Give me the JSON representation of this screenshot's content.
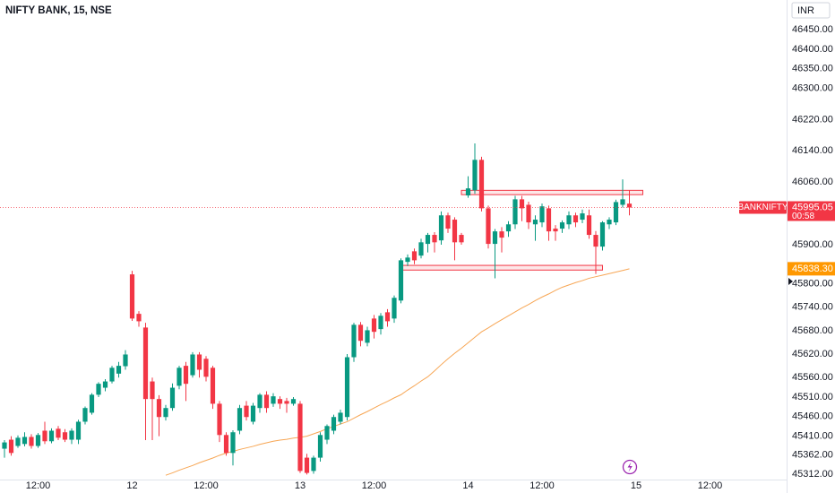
{
  "chart_data": {
    "type": "candlestick",
    "title": "NIFTY BANK, 15, NSE",
    "currency": "INR",
    "symbol": "BANKNIFTY",
    "countdown": "00:58",
    "up_color": "#089981",
    "down_color": "#f23645",
    "grid": false,
    "last_price_line": true,
    "ylim": [
      45299,
      46526
    ],
    "yticks": [
      {
        "value": 46450,
        "label": "46450.00"
      },
      {
        "value": 46400,
        "label": "46400.00"
      },
      {
        "value": 46350,
        "label": "46350.00"
      },
      {
        "value": 46300,
        "label": "46300.00"
      },
      {
        "value": 46220,
        "label": "46220.00"
      },
      {
        "value": 46140,
        "label": "46140.00"
      },
      {
        "value": 46060,
        "label": "46060.00"
      },
      {
        "value": 45900,
        "label": "45900.00"
      },
      {
        "value": 45800,
        "label": "45800.00"
      },
      {
        "value": 45740,
        "label": "45740.00"
      },
      {
        "value": 45680,
        "label": "45680.00"
      },
      {
        "value": 45620,
        "label": "45620.00"
      },
      {
        "value": 45560,
        "label": "45560.00"
      },
      {
        "value": 45510,
        "label": "45510.00"
      },
      {
        "value": 45460,
        "label": "45460.00"
      },
      {
        "value": 45410,
        "label": "45410.00"
      },
      {
        "value": 45362,
        "label": "45362.00"
      },
      {
        "value": 45312,
        "label": "45312.00"
      }
    ],
    "categories": [
      null,
      null,
      null,
      null,
      null,
      "12:00",
      null,
      null,
      null,
      null,
      null,
      null,
      null,
      null,
      null,
      null,
      null,
      null,
      null,
      "12",
      null,
      null,
      null,
      null,
      null,
      null,
      null,
      null,
      null,
      null,
      "12:00",
      null,
      null,
      null,
      null,
      null,
      null,
      null,
      null,
      null,
      null,
      null,
      null,
      null,
      "13",
      null,
      null,
      null,
      null,
      null,
      null,
      null,
      null,
      null,
      null,
      "12:00",
      null,
      null,
      null,
      null,
      null,
      null,
      null,
      null,
      null,
      null,
      null,
      null,
      null,
      "14",
      null,
      null,
      null,
      null,
      null,
      null,
      null,
      null,
      null,
      null,
      "12:00",
      null,
      null,
      null,
      null,
      null,
      null,
      null,
      null,
      null,
      null,
      null,
      null,
      null,
      "15",
      null,
      null,
      null,
      null,
      null,
      null,
      null,
      null,
      null,
      null,
      "12:00",
      null,
      null,
      null,
      null,
      null,
      null,
      null,
      null,
      null,
      null,
      null
    ],
    "open": [
      45378,
      45401,
      45385,
      45390,
      45408,
      45385,
      45424,
      45397,
      45429,
      45420,
      45401,
      45401,
      45447,
      45470,
      45516,
      45534,
      45550,
      45570,
      45589,
      45824,
      45723,
      45688,
      45550,
      45505,
      45459,
      45482,
      45539,
      45590,
      45566,
      45619,
      45608,
      45585,
      45493,
      45413,
      45367,
      45424,
      45488,
      45447,
      45482,
      45516,
      45493,
      45505,
      45500,
      45493,
      45493,
      45355,
      45321,
      45355,
      45401,
      45424,
      45447,
      45459,
      45612,
      45695,
      45649,
      45711,
      45684,
      45727,
      45711,
      45757,
      45856,
      45883,
      45872,
      45902,
      45925,
      45911,
      45975,
      45964,
      45925,
      46026,
      46039,
      46117,
      45993,
      45902,
      45934,
      45934,
      45952,
      46016,
      46002,
      45952,
      45957,
      45993,
      45941,
      45941,
      45952,
      45975,
      45964,
      45975,
      45925,
      45895,
      45952,
      45957,
      46002,
      46005,
      null,
      null,
      null,
      null,
      null,
      null,
      null,
      null,
      null,
      null,
      null,
      null,
      null,
      null,
      null,
      null,
      null,
      null,
      null,
      null,
      null,
      null,
      null
    ],
    "high": [
      45400,
      45410,
      45412,
      45420,
      45415,
      45418,
      45447,
      45430,
      45436,
      45428,
      45430,
      45452,
      45486,
      45520,
      45548,
      45556,
      45590,
      45600,
      45630,
      45833,
      45730,
      45700,
      45560,
      45515,
      45490,
      45545,
      45590,
      45600,
      45625,
      45625,
      45615,
      45590,
      45500,
      45420,
      45425,
      45490,
      45500,
      45495,
      45520,
      45525,
      45520,
      45512,
      45508,
      45510,
      45500,
      45365,
      45360,
      45420,
      45440,
      45465,
      45478,
      45620,
      45700,
      45702,
      45690,
      45720,
      45725,
      45735,
      45770,
      45865,
      45875,
      45890,
      45915,
      45930,
      45932,
      45985,
      45982,
      45970,
      45930,
      46075,
      46159,
      46125,
      46000,
      45940,
      45945,
      45960,
      46025,
      46025,
      46010,
      45975,
      46005,
      46000,
      45950,
      45962,
      45985,
      45982,
      45990,
      45990,
      45935,
      45960,
      45970,
      46015,
      46067,
      46039,
      null,
      null,
      null,
      null,
      null,
      null,
      null,
      null,
      null,
      null,
      null,
      null,
      null,
      null,
      null,
      null,
      null,
      null,
      null,
      null,
      null,
      null,
      null
    ],
    "low": [
      45355,
      45360,
      45380,
      45384,
      45378,
      45380,
      45390,
      45392,
      45400,
      45395,
      45390,
      45390,
      45440,
      45465,
      45510,
      45525,
      45545,
      45560,
      45580,
      45705,
      45690,
      45400,
      45400,
      45410,
      45450,
      45475,
      45530,
      45500,
      45560,
      45560,
      45550,
      45480,
      45395,
      45360,
      45335,
      45415,
      45450,
      45440,
      45470,
      45470,
      45485,
      45480,
      45470,
      45488,
      45316,
      45312,
      45314,
      45345,
      45390,
      45415,
      45440,
      45450,
      45600,
      45640,
      45640,
      45660,
      45670,
      45690,
      45700,
      45750,
      45845,
      45850,
      45865,
      45880,
      45880,
      45900,
      45930,
      45860,
      45900,
      46020,
      46030,
      45985,
      45890,
      45814,
      45880,
      45920,
      45940,
      45960,
      45940,
      45910,
      45945,
      45910,
      45910,
      45930,
      45940,
      45945,
      45955,
      45915,
      45825,
      45885,
      45940,
      45950,
      45995,
      45975,
      null,
      null,
      null,
      null,
      null,
      null,
      null,
      null,
      null,
      null,
      null,
      null,
      null,
      null,
      null,
      null,
      null,
      null,
      null,
      null,
      null,
      null,
      null
    ],
    "close": [
      45394,
      45367,
      45406,
      45408,
      45385,
      45413,
      45397,
      45424,
      45406,
      45401,
      45424,
      45447,
      45482,
      45516,
      45544,
      45550,
      45585,
      45590,
      45619,
      45711,
      45704,
      45505,
      45505,
      45459,
      45482,
      45534,
      45585,
      45544,
      45619,
      45580,
      45562,
      45493,
      45413,
      45367,
      45420,
      45482,
      45459,
      45488,
      45516,
      45482,
      45512,
      45493,
      45493,
      45505,
      45321,
      45316,
      45355,
      45413,
      45436,
      45459,
      45470,
      45612,
      45695,
      45654,
      45681,
      45677,
      45718,
      45704,
      45764,
      45860,
      45867,
      45860,
      45906,
      45925,
      45906,
      45975,
      45941,
      45906,
      45906,
      46044,
      46117,
      45993,
      45902,
      45934,
      45918,
      45952,
      46016,
      45993,
      45957,
      45964,
      45998,
      45934,
      45934,
      45957,
      45975,
      45957,
      45980,
      45925,
      45895,
      45957,
      45964,
      46009,
      46016,
      45995.05,
      null,
      null,
      null,
      null,
      null,
      null,
      null,
      null,
      null,
      null,
      null,
      null,
      null,
      null,
      null,
      null,
      null,
      null,
      null,
      null,
      null,
      null,
      null
    ],
    "overlays": [
      {
        "type": "line",
        "color": "#f7a654",
        "last_label": "45838.30",
        "values": [
          null,
          null,
          null,
          null,
          null,
          null,
          null,
          null,
          null,
          null,
          null,
          null,
          null,
          null,
          null,
          null,
          null,
          null,
          null,
          null,
          null,
          null,
          null,
          null,
          45310,
          45316,
          45323,
          45329,
          45335,
          45342,
          45348,
          45354,
          45361,
          45367,
          45371,
          45376,
          45380,
          45384,
          45389,
          45393,
          45397,
          45400,
          45402,
          45405,
          45407,
          45410,
          45416,
          45422,
          45429,
          45435,
          45441,
          45447,
          45456,
          45465,
          45473,
          45482,
          45491,
          45499,
          45508,
          45516,
          45528,
          45539,
          45551,
          45562,
          45577,
          45593,
          45608,
          45622,
          45635,
          45649,
          45663,
          45677,
          45687,
          45698,
          45708,
          45718,
          45728,
          45738,
          45747,
          45757,
          45766,
          45774,
          45783,
          45791,
          45797,
          45803,
          45808,
          45814,
          45818,
          45822,
          45826,
          45830,
          45834,
          45838.3,
          null,
          null,
          null,
          null,
          null,
          null,
          null,
          null,
          null,
          null,
          null,
          null,
          null,
          null,
          null,
          null,
          null,
          null,
          null,
          null,
          null,
          null,
          null
        ]
      }
    ],
    "zones": [
      {
        "x": [
          68,
          95
        ],
        "y": [
          46028,
          46039
        ],
        "color": "#f23645"
      },
      {
        "x": [
          59,
          89
        ],
        "y": [
          45835,
          45847
        ],
        "color": "#f23645"
      }
    ]
  }
}
